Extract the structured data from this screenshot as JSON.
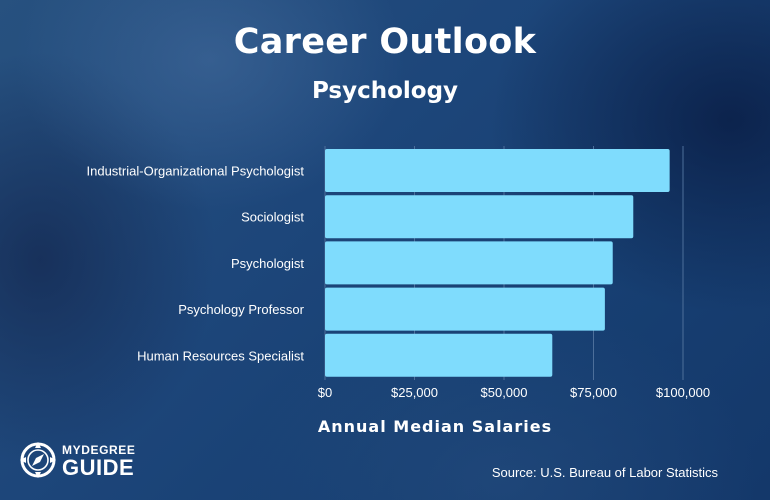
{
  "chart_data": {
    "type": "bar",
    "orientation": "horizontal",
    "title": "Career Outlook",
    "subtitle": "Psychology",
    "xlabel": "Annual Median Salaries",
    "ylabel": "",
    "categories": [
      "Industrial-Organizational Psychologist",
      "Sociologist",
      "Psychologist",
      "Psychology Professor",
      "Human Resources Specialist"
    ],
    "values": [
      96270,
      86110,
      80370,
      78180,
      63490
    ],
    "xlim": [
      0,
      100000
    ],
    "xticks": [
      0,
      25000,
      50000,
      75000,
      100000
    ],
    "xtick_labels": [
      "$0",
      "$25,000",
      "$50,000",
      "$75,000",
      "$100,000"
    ],
    "grid": "vertical",
    "bar_color": "#7fdcfd",
    "grid_color": "#4d6f9a"
  },
  "source": "Source: U.S. Bureau of Labor Statistics",
  "logo": {
    "top": "MYDEGREE",
    "bottom": "GUIDE",
    "icon": "compass-icon"
  }
}
